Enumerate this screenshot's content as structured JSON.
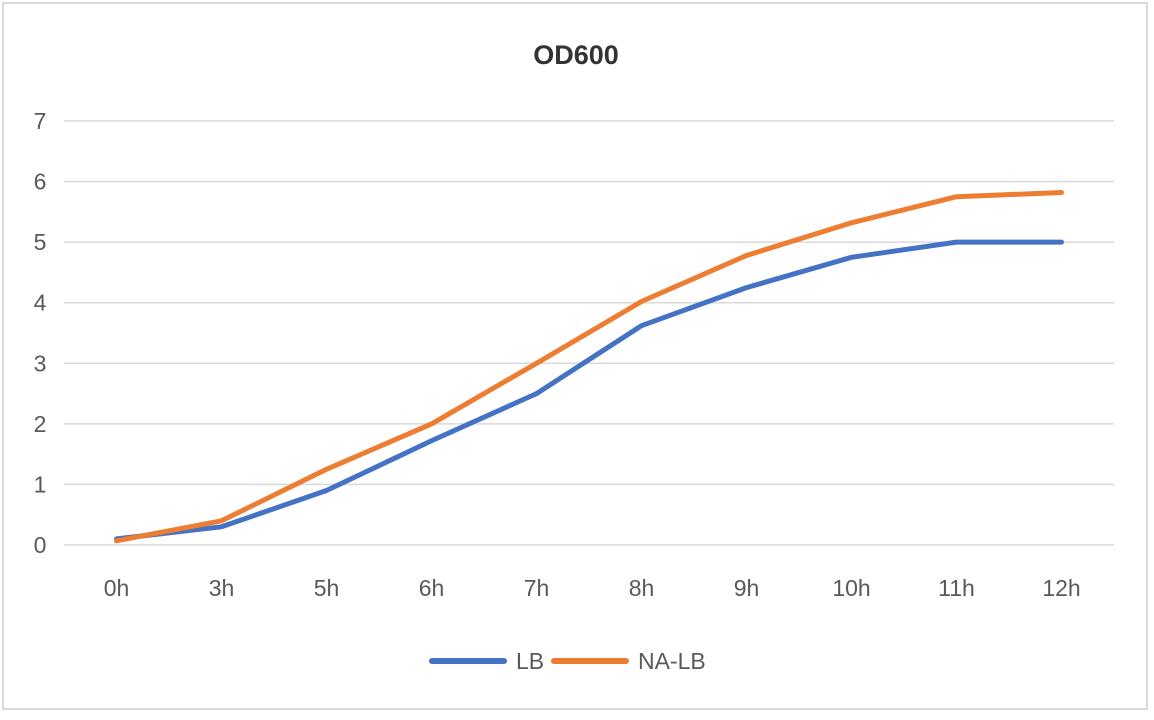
{
  "chart_data": {
    "type": "line",
    "title": "OD600",
    "xlabel": "",
    "ylabel": "",
    "categories": [
      "0h",
      "3h",
      "5h",
      "6h",
      "7h",
      "8h",
      "9h",
      "10h",
      "11h",
      "12h"
    ],
    "ylim": [
      0,
      7
    ],
    "yticks": [
      "0",
      "1",
      "2",
      "3",
      "4",
      "5",
      "6",
      "7"
    ],
    "grid": true,
    "legend_position": "bottom",
    "series": [
      {
        "name": "LB",
        "color": "#4472C4",
        "values": [
          0.1,
          0.3,
          0.9,
          1.72,
          2.5,
          3.62,
          4.25,
          4.75,
          5.0,
          5.0
        ]
      },
      {
        "name": "NA-LB",
        "color": "#ED7D31",
        "values": [
          0.07,
          0.4,
          1.25,
          2.0,
          3.0,
          4.02,
          4.78,
          5.32,
          5.75,
          5.82
        ]
      }
    ]
  }
}
